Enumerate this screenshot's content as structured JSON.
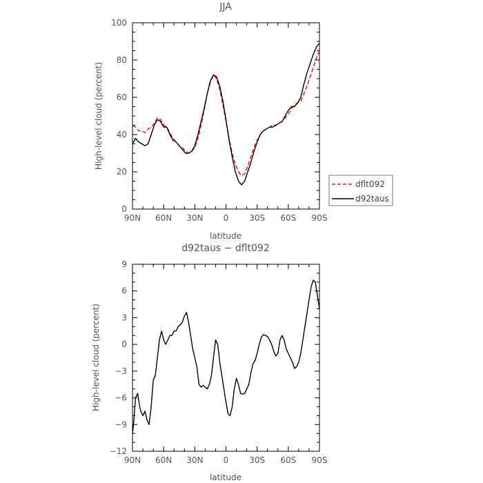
{
  "chart_data": [
    {
      "type": "line",
      "title": "JJA",
      "xlabel": "latitude",
      "ylabel": "High-level cloud (percent)",
      "xlim": [
        90,
        -90
      ],
      "ylim": [
        0,
        100
      ],
      "xticks": [
        90,
        60,
        30,
        0,
        -30,
        -60,
        -90
      ],
      "xtick_labels": [
        "90N",
        "60N",
        "30N",
        "0",
        "30S",
        "60S",
        "90S"
      ],
      "yticks": [
        0,
        20,
        40,
        60,
        80,
        100
      ],
      "ytick_labels": [
        "0",
        "20",
        "40",
        "60",
        "80",
        "100"
      ],
      "legend_position": "right, outside plot",
      "series": [
        {
          "name": "dflt092",
          "color": "#ff0000",
          "dash": "dashed",
          "x": [
            90,
            87,
            84,
            81,
            78,
            75,
            72,
            69,
            66,
            63,
            60,
            57,
            54,
            51,
            48,
            45,
            42,
            39,
            36,
            33,
            30,
            27,
            24,
            21,
            18,
            15,
            12,
            9,
            6,
            3,
            0,
            -3,
            -6,
            -9,
            -12,
            -15,
            -18,
            -21,
            -24,
            -27,
            -30,
            -33,
            -36,
            -39,
            -42,
            -45,
            -48,
            -51,
            -54,
            -57,
            -60,
            -63,
            -66,
            -69,
            -72,
            -75,
            -78,
            -81,
            -84,
            -87,
            -90
          ],
          "y": [
            45,
            44,
            42,
            42,
            41,
            43,
            44,
            46,
            49,
            48,
            45,
            44,
            41,
            38,
            36,
            34,
            33,
            31,
            30,
            31,
            33,
            38,
            45,
            53,
            62,
            68,
            72,
            70,
            64,
            56,
            47,
            38,
            30,
            24,
            20,
            18,
            19,
            23,
            28,
            33,
            37,
            40,
            42,
            43,
            44,
            45,
            45,
            46,
            47,
            49,
            51,
            54,
            56,
            57,
            58,
            62,
            66,
            71,
            76,
            81,
            85
          ]
        },
        {
          "name": "d92taus",
          "color": "#000000",
          "dash": "solid",
          "x": [
            90,
            87,
            84,
            81,
            78,
            75,
            72,
            69,
            66,
            63,
            60,
            57,
            54,
            51,
            48,
            45,
            42,
            39,
            36,
            33,
            30,
            27,
            24,
            21,
            18,
            15,
            12,
            9,
            6,
            3,
            0,
            -3,
            -6,
            -9,
            -12,
            -15,
            -18,
            -21,
            -24,
            -27,
            -30,
            -33,
            -36,
            -39,
            -42,
            -45,
            -48,
            -51,
            -54,
            -57,
            -60,
            -63,
            -66,
            -69,
            -72,
            -75,
            -78,
            -81,
            -84,
            -87,
            -90
          ],
          "y": [
            35,
            38,
            36,
            35,
            34,
            35,
            40,
            45,
            48,
            47,
            44,
            44,
            40,
            37,
            36,
            34,
            32,
            30,
            30,
            31,
            34,
            40,
            47,
            54,
            62,
            69,
            72,
            71,
            66,
            58,
            48,
            37,
            28,
            20,
            15,
            13,
            15,
            20,
            25,
            31,
            36,
            40,
            42,
            43,
            44,
            44,
            45,
            46,
            47,
            50,
            53,
            55,
            55,
            57,
            60,
            67,
            73,
            78,
            83,
            87,
            89
          ]
        }
      ]
    },
    {
      "type": "line",
      "title": "d92taus − dflt092",
      "xlabel": "latitude",
      "ylabel": "High-level cloud (percent)",
      "xlim": [
        90,
        -90
      ],
      "ylim": [
        -12,
        9
      ],
      "xticks": [
        90,
        60,
        30,
        0,
        -30,
        -60,
        -90
      ],
      "xtick_labels": [
        "90N",
        "60N",
        "30N",
        "0",
        "30S",
        "60S",
        "90S"
      ],
      "yticks": [
        -12,
        -9,
        -6,
        -3,
        0,
        3,
        6,
        9
      ],
      "ytick_labels": [
        "−12",
        "−9",
        "−6",
        "−3",
        "0",
        "3",
        "6",
        "9"
      ],
      "series": [
        {
          "color": "#000000",
          "dash": "solid",
          "x": [
            90,
            89,
            87,
            85,
            83,
            82,
            80,
            78,
            76,
            74,
            72,
            70,
            68,
            66,
            64,
            62,
            60,
            58,
            56,
            54,
            52,
            50,
            48,
            46,
            44,
            42,
            40,
            38,
            36,
            34,
            32,
            30,
            28,
            26,
            24,
            22,
            20,
            18,
            16,
            14,
            12,
            10,
            8,
            6,
            4,
            2,
            0,
            -2,
            -4,
            -6,
            -8,
            -10,
            -12,
            -14,
            -16,
            -18,
            -20,
            -22,
            -24,
            -26,
            -28,
            -30,
            -32,
            -34,
            -36,
            -38,
            -40,
            -42,
            -44,
            -46,
            -48,
            -50,
            -52,
            -54,
            -56,
            -58,
            -60,
            -62,
            -64,
            -66,
            -68,
            -70,
            -72,
            -74,
            -76,
            -78,
            -80,
            -82,
            -84,
            -86,
            -88,
            -90
          ],
          "y": [
            -10,
            -9,
            -6,
            -5.5,
            -7,
            -7.5,
            -8,
            -7.5,
            -8.5,
            -9,
            -7,
            -4,
            -3.5,
            -1.5,
            0.5,
            1.5,
            0.5,
            0,
            0.5,
            1,
            1,
            1.5,
            1.5,
            2,
            2.2,
            2.5,
            3.2,
            3.6,
            2.5,
            1,
            -0.5,
            -1.5,
            -2.5,
            -4.5,
            -4.8,
            -4.6,
            -4.8,
            -5,
            -4.5,
            -3.5,
            -1.5,
            0.5,
            0,
            -2,
            -3.5,
            -5,
            -6.5,
            -7.8,
            -8,
            -7,
            -5,
            -3.8,
            -4.5,
            -5.5,
            -5.6,
            -5.5,
            -5,
            -4.5,
            -3.2,
            -2.2,
            -1.8,
            -1,
            0,
            0.8,
            1.1,
            1,
            0.9,
            0.5,
            0,
            -0.8,
            -1.3,
            -1,
            0.5,
            1,
            0.5,
            -0.5,
            -1,
            -1.5,
            -2,
            -2.7,
            -2.5,
            -2,
            -1,
            0.5,
            2,
            3.5,
            5,
            6.5,
            7.2,
            7,
            5.5,
            4
          ]
        }
      ]
    }
  ]
}
